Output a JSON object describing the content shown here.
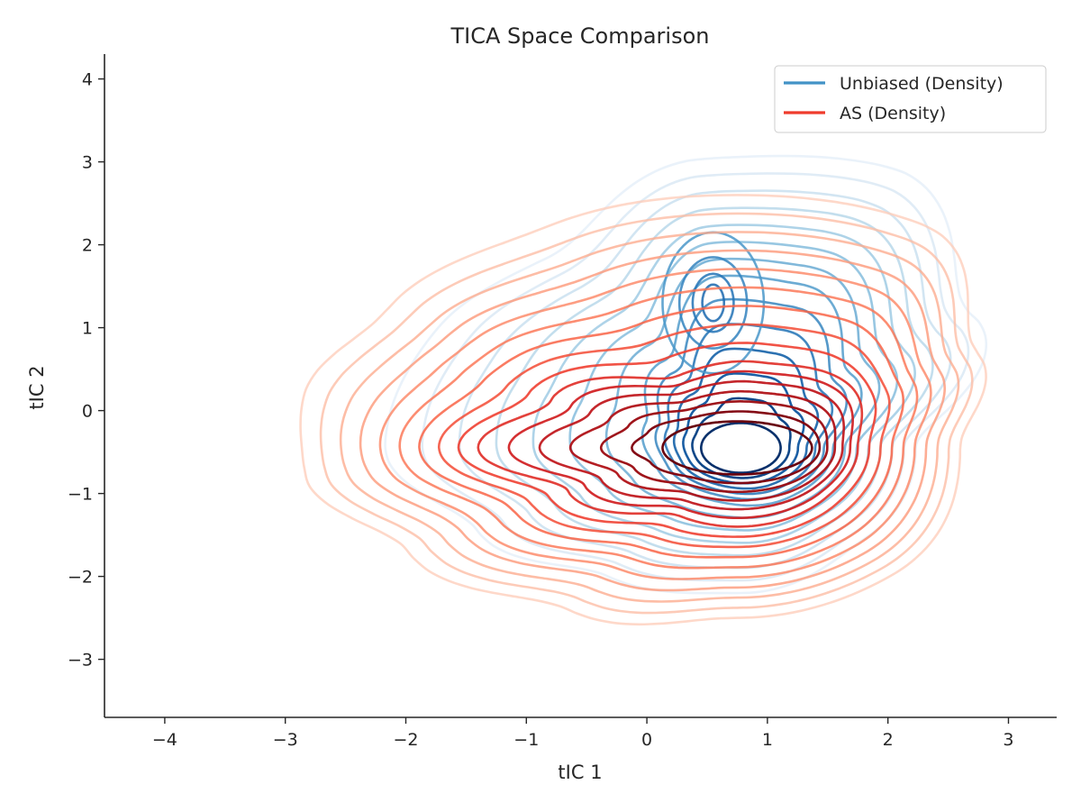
{
  "chart_data": {
    "type": "contour",
    "title": "TICA Space Comparison",
    "xlabel": "tIC 1",
    "ylabel": "tIC 2",
    "xlim": [
      -4.5,
      3.4
    ],
    "ylim": [
      -3.7,
      4.3
    ],
    "xticks": [
      -4,
      -3,
      -2,
      -1,
      0,
      1,
      2,
      3
    ],
    "yticks": [
      -3,
      -2,
      -1,
      0,
      1,
      2,
      3,
      4
    ],
    "xtick_labels": [
      "−4",
      "−3",
      "−2",
      "−1",
      "0",
      "1",
      "2",
      "3"
    ],
    "ytick_labels": [
      "−3",
      "−2",
      "−1",
      "0",
      "1",
      "2",
      "3",
      "4"
    ],
    "grid": false,
    "legend": {
      "position": "top-right"
    },
    "series": [
      {
        "name": "Unbiased (Density)",
        "color": "#4292c6",
        "colormap": "Blues",
        "levels": 14,
        "mode": [
          0.78,
          -0.45
        ],
        "secondary_mode": [
          0.55,
          1.3
        ],
        "extent": {
          "x": [
            -2.2,
            2.2
          ],
          "y": [
            -2.2,
            3.1
          ]
        }
      },
      {
        "name": "AS (Density)",
        "color": "#ef3b2c",
        "colormap": "Reds",
        "levels": 16,
        "mode": [
          0.75,
          -0.45
        ],
        "extent": {
          "x": [
            -2.9,
            2.6
          ],
          "y": [
            -2.5,
            2.8
          ]
        }
      }
    ]
  }
}
